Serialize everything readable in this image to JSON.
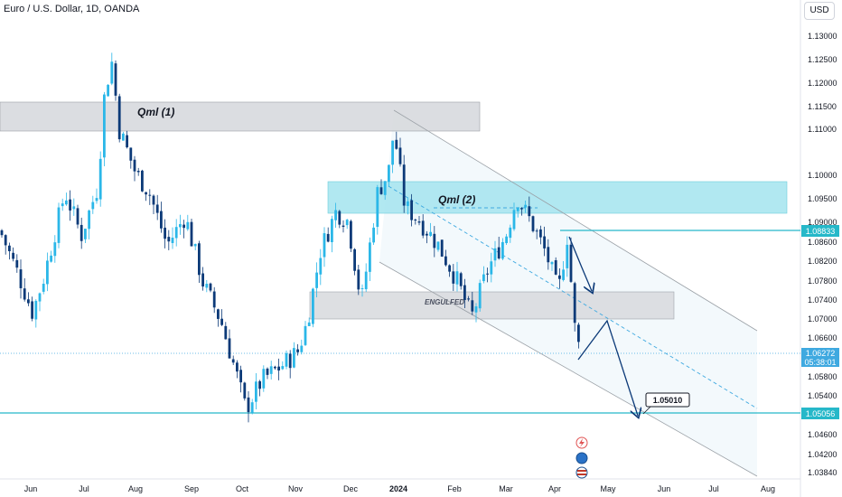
{
  "header": {
    "title": "Euro / U.S. Dollar, 1D, OANDA",
    "currency": "USD"
  },
  "colors": {
    "bull": "#2bb7e8",
    "bear": "#0c3a78",
    "cyan": "#26b8c9",
    "zone_grey": "#d8dade",
    "zone_cyan": "#a9e6f0",
    "channel": "#9aa0a6",
    "arrow": "#0c3a78"
  },
  "chart_data": {
    "type": "candlestick",
    "title": "Euro / U.S. Dollar, 1D, OANDA",
    "y_axis": {
      "ticks": [
        "1.13000",
        "1.12500",
        "1.12000",
        "1.11500",
        "1.11000",
        "1.10000",
        "1.09500",
        "1.09000",
        "1.08600",
        "1.08200",
        "1.07800",
        "1.07400",
        "1.07000",
        "1.06600",
        "1.05800",
        "1.05400",
        "1.05000",
        "1.04600",
        "1.04200",
        "1.03840"
      ],
      "range": [
        1.0375,
        1.1325
      ]
    },
    "x_axis": {
      "ticks": [
        "Jun",
        "Jul",
        "Aug",
        "Sep",
        "Oct",
        "Nov",
        "Dec",
        "2024",
        "Feb",
        "Mar",
        "Apr",
        "May",
        "Jun",
        "Jul",
        "Aug"
      ]
    },
    "price_labels": [
      {
        "value": "1.08833",
        "style": "filled"
      },
      {
        "value": "1.06272",
        "sub": "05:38:01",
        "style": "current"
      },
      {
        "value": "1.05056",
        "style": "filled"
      }
    ],
    "annotations": {
      "qml1": "Qml (1)",
      "qml2": "Qml (2)",
      "engulfed": "ENGULFED",
      "target": "1.05010"
    },
    "series_path": [
      [
        0,
        1.089
      ],
      [
        20,
        1.08
      ],
      [
        36,
        1.072
      ],
      [
        48,
        1.079
      ],
      [
        60,
        1.088
      ],
      [
        72,
        1.097
      ],
      [
        90,
        1.088
      ],
      [
        108,
        1.098
      ],
      [
        116,
        1.118
      ],
      [
        124,
        1.124
      ],
      [
        132,
        1.11
      ],
      [
        150,
        1.101
      ],
      [
        165,
        1.097
      ],
      [
        185,
        1.086
      ],
      [
        205,
        1.092
      ],
      [
        225,
        1.078
      ],
      [
        245,
        1.07
      ],
      [
        262,
        1.059
      ],
      [
        272,
        1.052
      ],
      [
        290,
        1.058
      ],
      [
        312,
        1.061
      ],
      [
        330,
        1.064
      ],
      [
        340,
        1.07
      ],
      [
        355,
        1.085
      ],
      [
        372,
        1.093
      ],
      [
        385,
        1.091
      ],
      [
        400,
        1.074
      ],
      [
        418,
        1.097
      ],
      [
        430,
        1.101
      ],
      [
        436,
        1.11
      ],
      [
        448,
        1.094
      ],
      [
        465,
        1.091
      ],
      [
        485,
        1.086
      ],
      [
        505,
        1.079
      ],
      [
        522,
        1.071
      ],
      [
        540,
        1.081
      ],
      [
        560,
        1.088
      ],
      [
        572,
        1.096
      ],
      [
        590,
        1.09
      ],
      [
        605,
        1.084
      ],
      [
        618,
        1.076
      ],
      [
        628,
        1.088
      ],
      [
        636,
        1.069
      ],
      [
        644,
        1.062
      ]
    ]
  }
}
